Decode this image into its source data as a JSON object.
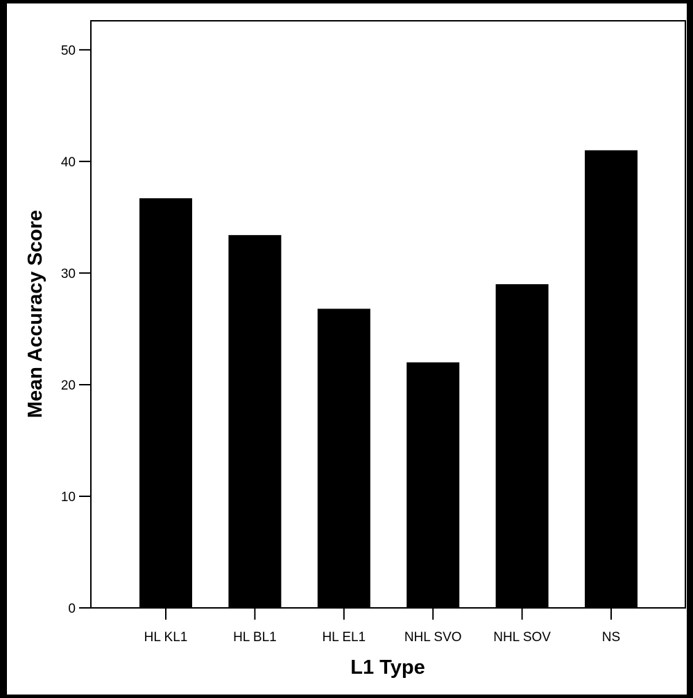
{
  "chart_data": {
    "type": "bar",
    "title": "",
    "xlabel": "L1 Type",
    "ylabel": "Mean Accuracy Score",
    "categories": [
      "HL KL1",
      "HL BL1",
      "HL EL1",
      "NHL SVO",
      "NHL SOV",
      "NS"
    ],
    "values": [
      36.7,
      33.4,
      26.8,
      22.0,
      29.0,
      41.0
    ],
    "ylim": [
      0,
      52.6
    ],
    "yticks": [
      0,
      10,
      20,
      30,
      40,
      50
    ],
    "grid": false,
    "legend": "none",
    "bar_color": "#000000",
    "plot_background": "#ffffff",
    "page_background": "#000000"
  }
}
